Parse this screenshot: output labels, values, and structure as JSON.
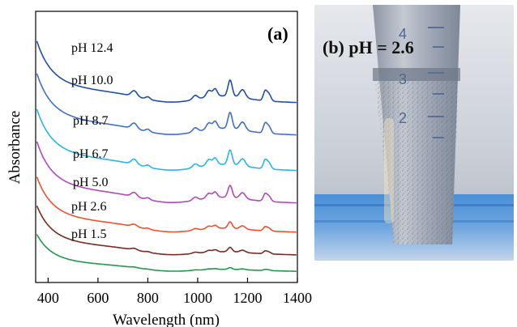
{
  "chart_data": {
    "type": "line",
    "panel_label": "(a)",
    "xlabel": "Wavelength (nm)",
    "ylabel": "Absorbance",
    "xlim": [
      350,
      1400
    ],
    "xticks": [
      400,
      600,
      800,
      1000,
      1200,
      1400
    ],
    "y_tick_labels": false,
    "series_labels_inline": true,
    "series": [
      {
        "name": "pH 12.4",
        "color": "#1f4fa8"
      },
      {
        "name": "pH 10.0",
        "color": "#3f6fc8"
      },
      {
        "name": "pH 8.7",
        "color": "#27b6e6"
      },
      {
        "name": "pH 6.7",
        "color": "#b04ab8"
      },
      {
        "name": "pH 5.0",
        "color": "#f0502a"
      },
      {
        "name": "pH 2.6",
        "color": "#7a2a1e"
      },
      {
        "name": "pH 1.5",
        "color": "#1f9a4a"
      }
    ]
  },
  "photo": {
    "label": "(b) pH = 2.6",
    "scale_marks": [
      "4",
      "3",
      "2"
    ]
  }
}
